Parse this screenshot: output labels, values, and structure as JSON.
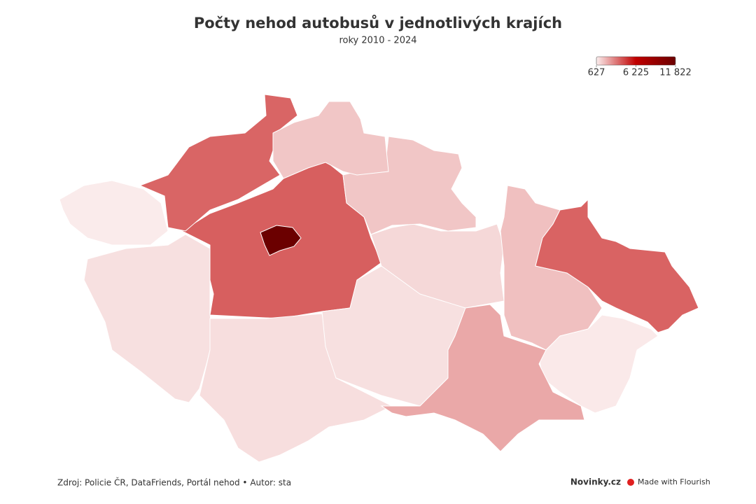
{
  "chart_data": {
    "type": "choropleth",
    "title": "Počty nehod autobusů v jednotlivých krajích",
    "subtitle": "roky 2010 - 2024",
    "values": [
      11822,
      4000,
      3850,
      700,
      960,
      1000,
      960,
      1150,
      1570,
      1570,
      1700,
      3900,
      750,
      2270
    ],
    "colors": [
      "#fbeeee",
      "#c00000",
      "#6b0000"
    ],
    "legend_ticks": [
      627,
      {
        "value": 6225,
        "label": "6 225"
      },
      {
        "value": 11822,
        "label": "11 822"
      }
    ],
    "source": "Zdroj: Policie ČR, DataFriends, Portál nehod • Autor: sta",
    "brand": "Novinky.cz",
    "credit": "Made with Flourish"
  }
}
